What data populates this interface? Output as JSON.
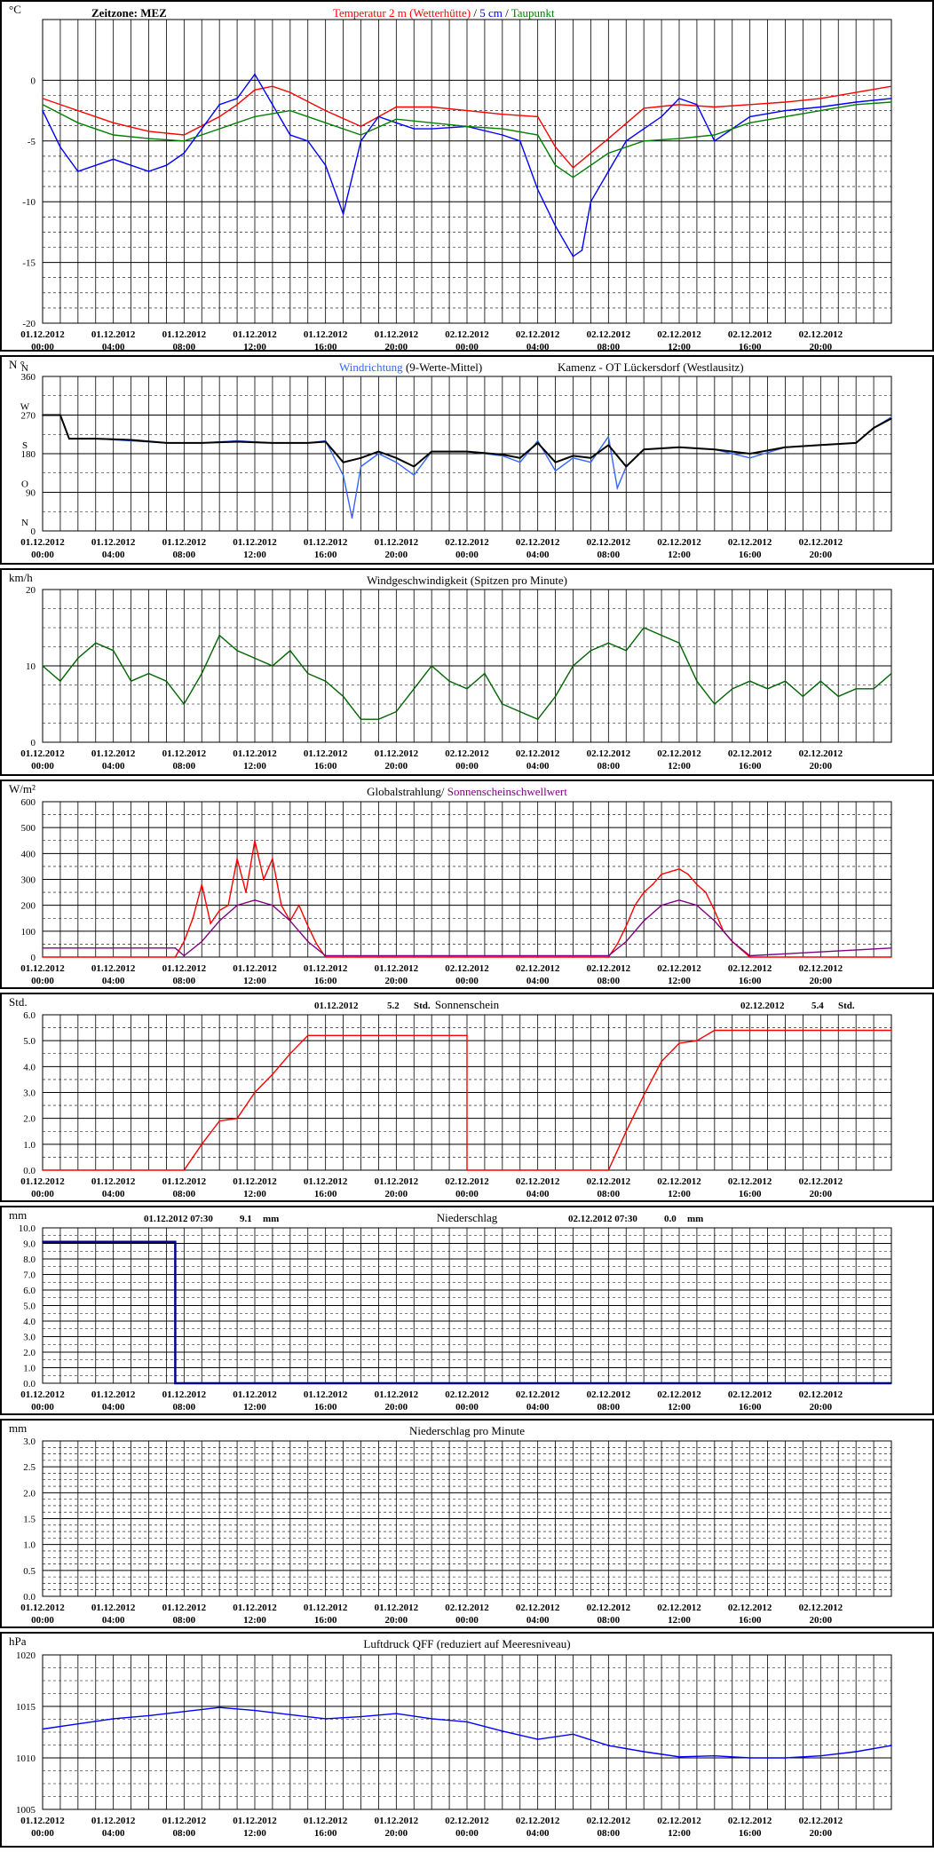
{
  "colors": {
    "background": "#ffffff",
    "panel_border": "#000000",
    "grid": "#000000",
    "temp_2m": "#ff0000",
    "temp_5cm": "#0000ff",
    "dewpoint": "#008000",
    "wind_dir_raw": "#3366ff",
    "wind_dir_avg": "#000000",
    "wind_speed": "#006400",
    "sun_threshold": "#800080",
    "precip_line": "#00008b"
  },
  "time_axis": {
    "labels": [
      {
        "date": "01.12.2012",
        "time": "00:00"
      },
      {
        "date": "01.12.2012",
        "time": "04:00"
      },
      {
        "date": "01.12.2012",
        "time": "08:00"
      },
      {
        "date": "01.12.2012",
        "time": "12:00"
      },
      {
        "date": "01.12.2012",
        "time": "16:00"
      },
      {
        "date": "01.12.2012",
        "time": "20:00"
      },
      {
        "date": "02.12.2012",
        "time": "00:00"
      },
      {
        "date": "02.12.2012",
        "time": "04:00"
      },
      {
        "date": "02.12.2012",
        "time": "08:00"
      },
      {
        "date": "02.12.2012",
        "time": "12:00"
      },
      {
        "date": "02.12.2012",
        "time": "16:00"
      },
      {
        "date": "02.12.2012",
        "time": "20:00"
      }
    ],
    "hours_shown": 48
  },
  "chart_data": [
    {
      "id": "temperature",
      "type": "line",
      "unit_label": "°C",
      "titles": [
        {
          "text": "Zeitzone: MEZ",
          "color": "#000000"
        },
        {
          "text": "Temperatur 2 m (Wetterhütte)",
          "color": "#ff0000"
        },
        {
          "text": "/",
          "color": "#000000"
        },
        {
          "text": "5 cm",
          "color": "#0000ff"
        },
        {
          "text": "/",
          "color": "#000000"
        },
        {
          "text": "Taupunkt",
          "color": "#008000"
        }
      ],
      "ylim": [
        -20,
        5
      ],
      "yticks": [
        -20,
        -15,
        -10,
        -5,
        0
      ],
      "ytick_labels": [
        "-20",
        "-15",
        "-10",
        "-5",
        "0"
      ],
      "series": [
        {
          "name": "Temperatur 2 m (Wetterhütte)",
          "color": "#ff0000",
          "x": [
            0,
            2,
            4,
            6,
            8,
            10,
            11,
            12,
            13,
            14,
            16,
            18,
            20,
            22,
            24,
            26,
            28,
            29,
            30,
            32,
            34,
            36,
            38,
            40,
            42,
            44,
            46,
            48
          ],
          "y": [
            -1.5,
            -2.5,
            -3.5,
            -4.2,
            -4.5,
            -3.0,
            -2.0,
            -0.8,
            -0.5,
            -1.0,
            -2.5,
            -3.8,
            -2.2,
            -2.2,
            -2.5,
            -2.8,
            -3.0,
            -5.5,
            -7.2,
            -4.8,
            -2.3,
            -2.0,
            -2.2,
            -2.0,
            -1.8,
            -1.5,
            -1.0,
            -0.5
          ]
        },
        {
          "name": "5 cm",
          "color": "#0000ff",
          "x": [
            0,
            1,
            2,
            3,
            4,
            5,
            6,
            7,
            8,
            9,
            10,
            11,
            12,
            13,
            14,
            15,
            16,
            17,
            18,
            19,
            20,
            21,
            22,
            24,
            26,
            27,
            28,
            29,
            30,
            30.5,
            31,
            32,
            33,
            34,
            35,
            36,
            37,
            38,
            40,
            42,
            44,
            46,
            48
          ],
          "y": [
            -2.5,
            -5.5,
            -7.5,
            -7.0,
            -6.5,
            -7.0,
            -7.5,
            -7.0,
            -6.0,
            -4.0,
            -2.0,
            -1.5,
            0.5,
            -2.0,
            -4.5,
            -5.0,
            -7.0,
            -11.0,
            -5.0,
            -3.0,
            -3.5,
            -4.0,
            -4.0,
            -3.8,
            -4.5,
            -5.0,
            -9.0,
            -12.0,
            -14.5,
            -14.0,
            -10.0,
            -7.5,
            -5.0,
            -4.0,
            -3.0,
            -1.5,
            -2.0,
            -5.0,
            -3.0,
            -2.5,
            -2.2,
            -1.8,
            -1.5
          ]
        },
        {
          "name": "Taupunkt",
          "color": "#008000",
          "x": [
            0,
            2,
            4,
            6,
            8,
            10,
            12,
            14,
            16,
            18,
            20,
            22,
            24,
            26,
            28,
            29,
            30,
            32,
            34,
            36,
            38,
            40,
            42,
            44,
            46,
            48
          ],
          "y": [
            -2.0,
            -3.5,
            -4.5,
            -4.8,
            -5.0,
            -4.0,
            -3.0,
            -2.5,
            -3.5,
            -4.5,
            -3.2,
            -3.5,
            -3.8,
            -4.0,
            -4.5,
            -7.0,
            -8.0,
            -6.0,
            -5.0,
            -4.8,
            -4.5,
            -3.5,
            -3.0,
            -2.5,
            -2.0,
            -1.8
          ]
        }
      ]
    },
    {
      "id": "wind_direction",
      "type": "line",
      "unit_label": "N °",
      "titles": [
        {
          "text": "Windrichtung",
          "color": "#3366ff"
        },
        {
          "text": "(9-Werte-Mittel)",
          "color": "#000000"
        },
        {
          "text": "Kamenz - OT Lückersdorf (Westlausitz)",
          "color": "#000000"
        }
      ],
      "ylim": [
        0,
        360
      ],
      "yticks": [
        0,
        90,
        180,
        270,
        360
      ],
      "ytick_labels": [
        "0",
        "90",
        "180",
        "270",
        "360"
      ],
      "compass_labels": [
        {
          "value": 360,
          "text": "N"
        },
        {
          "value": 270,
          "text": "W"
        },
        {
          "value": 180,
          "text": "S"
        },
        {
          "value": 90,
          "text": "O"
        },
        {
          "value": 0,
          "text": "N"
        }
      ],
      "series": [
        {
          "name": "Windrichtung",
          "color": "#3366ff",
          "x": [
            0,
            1,
            1.5,
            3,
            5,
            7,
            9,
            11,
            13,
            15,
            16,
            17,
            17.5,
            18,
            19,
            20,
            21,
            22,
            24,
            26,
            27,
            28,
            29,
            30,
            31,
            32,
            32.5,
            33,
            34,
            36,
            38,
            40,
            42,
            44,
            46,
            47,
            48
          ],
          "y": [
            270,
            270,
            215,
            215,
            210,
            205,
            205,
            210,
            205,
            205,
            210,
            130,
            30,
            150,
            180,
            160,
            130,
            185,
            185,
            175,
            160,
            210,
            140,
            170,
            160,
            220,
            100,
            150,
            190,
            195,
            190,
            170,
            195,
            200,
            205,
            240,
            265
          ]
        },
        {
          "name": "9-Werte-Mittel",
          "color": "#000000",
          "x": [
            0,
            1,
            1.5,
            3,
            5,
            7,
            9,
            11,
            13,
            15,
            16,
            17,
            18,
            19,
            20,
            21,
            22,
            24,
            26,
            27,
            28,
            29,
            30,
            31,
            32,
            33,
            34,
            36,
            38,
            40,
            42,
            44,
            46,
            47,
            48
          ],
          "y": [
            270,
            270,
            215,
            215,
            212,
            205,
            205,
            208,
            205,
            205,
            208,
            160,
            170,
            185,
            170,
            150,
            185,
            185,
            178,
            170,
            205,
            160,
            175,
            170,
            200,
            150,
            190,
            195,
            190,
            180,
            195,
            200,
            205,
            240,
            262
          ]
        }
      ]
    },
    {
      "id": "wind_speed",
      "type": "line",
      "unit_label": "km/h",
      "titles": [
        {
          "text": "Windgeschwindigkeit (Spitzen pro Minute)",
          "color": "#000000"
        }
      ],
      "ylim": [
        0,
        20
      ],
      "yticks": [
        0,
        10,
        20
      ],
      "ytick_labels": [
        "0",
        "10",
        "20"
      ],
      "series": [
        {
          "name": "Windgeschwindigkeit",
          "color": "#006400",
          "x": [
            0,
            1,
            2,
            3,
            4,
            5,
            6,
            7,
            8,
            9,
            10,
            11,
            12,
            13,
            14,
            15,
            16,
            17,
            18,
            19,
            20,
            21,
            22,
            23,
            24,
            25,
            26,
            27,
            28,
            29,
            30,
            31,
            32,
            33,
            34,
            35,
            36,
            37,
            38,
            39,
            40,
            41,
            42,
            43,
            44,
            45,
            46,
            47,
            48
          ],
          "y": [
            10,
            8,
            11,
            13,
            12,
            8,
            9,
            8,
            5,
            9,
            14,
            12,
            11,
            10,
            12,
            9,
            8,
            6,
            3,
            3,
            4,
            7,
            10,
            8,
            7,
            9,
            5,
            4,
            3,
            6,
            10,
            12,
            13,
            12,
            15,
            14,
            13,
            8,
            5,
            7,
            8,
            7,
            8,
            6,
            8,
            6,
            7,
            7,
            9
          ]
        }
      ]
    },
    {
      "id": "radiation",
      "type": "line",
      "unit_label": "W/m²",
      "titles": [
        {
          "text": "Globalstrahlung/",
          "color": "#000000"
        },
        {
          "text": "Sonnenscheinschwellwert",
          "color": "#800080"
        }
      ],
      "ylim": [
        0,
        600
      ],
      "yticks": [
        0,
        100,
        200,
        300,
        400,
        500,
        600
      ],
      "ytick_labels": [
        "0",
        "100",
        "200",
        "300",
        "400",
        "500",
        "600"
      ],
      "series": [
        {
          "name": "Globalstrahlung",
          "color": "#ff0000",
          "x": [
            0,
            7.5,
            8,
            8.5,
            9,
            9.5,
            10,
            10.5,
            11,
            11.5,
            12,
            12.5,
            13,
            13.5,
            14,
            14.5,
            15,
            15.5,
            16,
            32,
            32.5,
            33,
            33.5,
            34,
            34.5,
            35,
            35.5,
            36,
            36.5,
            37,
            37.5,
            38,
            38.5,
            39,
            39.5,
            40,
            48
          ],
          "y": [
            0,
            0,
            60,
            150,
            280,
            130,
            180,
            200,
            380,
            250,
            450,
            300,
            380,
            200,
            140,
            200,
            120,
            50,
            0,
            0,
            50,
            120,
            200,
            250,
            280,
            320,
            330,
            340,
            320,
            280,
            250,
            180,
            100,
            60,
            30,
            0,
            0
          ]
        },
        {
          "name": "Sonnenscheinschwellwert",
          "color": "#800080",
          "x": [
            0,
            7.5,
            8,
            9,
            10,
            11,
            12,
            13,
            14,
            15,
            16,
            32,
            33,
            34,
            35,
            36,
            37,
            38,
            39,
            40,
            48
          ],
          "y": [
            35,
            35,
            5,
            60,
            140,
            200,
            220,
            200,
            140,
            60,
            5,
            5,
            60,
            140,
            200,
            220,
            200,
            140,
            60,
            5,
            35
          ]
        }
      ]
    },
    {
      "id": "sunshine",
      "type": "line",
      "unit_label": "Std.",
      "titles": [
        {
          "text": "Sonnenschein",
          "color": "#000000"
        }
      ],
      "annotations": [
        {
          "date": "01.12.2012",
          "value": "5.2",
          "unit": "Std."
        },
        {
          "date": "02.12.2012",
          "value": "5.4",
          "unit": "Std."
        }
      ],
      "ylim": [
        0,
        6
      ],
      "yticks": [
        0,
        1,
        2,
        3,
        4,
        5,
        6
      ],
      "ytick_labels": [
        "0.0",
        "1.0",
        "2.0",
        "3.0",
        "4.0",
        "5.0",
        "6.0"
      ],
      "series": [
        {
          "name": "Sonnenschein",
          "color": "#ff0000",
          "x": [
            0,
            8,
            9,
            10,
            11,
            12,
            13,
            14,
            15,
            24,
            24,
            32,
            33,
            34,
            35,
            36,
            37,
            38,
            39,
            48
          ],
          "y": [
            0,
            0,
            1.0,
            1.9,
            2.0,
            3.0,
            3.7,
            4.5,
            5.2,
            5.2,
            0,
            0,
            1.5,
            2.9,
            4.2,
            4.9,
            5.0,
            5.4,
            5.4,
            5.4
          ]
        }
      ]
    },
    {
      "id": "precipitation",
      "type": "line",
      "unit_label": "mm",
      "titles": [
        {
          "text": "Niederschlag",
          "color": "#000000"
        }
      ],
      "annotations": [
        {
          "date": "01.12.2012 07:30",
          "value": "9.1",
          "unit": "mm"
        },
        {
          "date": "02.12.2012 07:30",
          "value": "0.0",
          "unit": "mm"
        }
      ],
      "ylim": [
        0,
        10
      ],
      "yticks": [
        0,
        1,
        2,
        3,
        4,
        5,
        6,
        7,
        8,
        9,
        10
      ],
      "ytick_labels": [
        "0.0",
        "1.0",
        "2.0",
        "3.0",
        "4.0",
        "5.0",
        "6.0",
        "7.0",
        "8.0",
        "9.0",
        "10.0"
      ],
      "series": [
        {
          "name": "Niederschlag",
          "color": "#00008b",
          "x": [
            0,
            7.5,
            7.5,
            48
          ],
          "y": [
            9.1,
            9.1,
            0,
            0
          ]
        }
      ]
    },
    {
      "id": "precip_minute",
      "type": "line",
      "unit_label": "mm",
      "titles": [
        {
          "text": "Niederschlag pro Minute",
          "color": "#000000"
        }
      ],
      "ylim": [
        0,
        3
      ],
      "yticks": [
        0,
        0.5,
        1,
        1.5,
        2,
        2.5,
        3
      ],
      "ytick_labels": [
        "0.0",
        "0.5",
        "1.0",
        "1.5",
        "2.0",
        "2.5",
        "3.0"
      ],
      "series": []
    },
    {
      "id": "pressure",
      "type": "line",
      "unit_label": "hPa",
      "titles": [
        {
          "text": "Luftdruck QFF (reduziert auf Meeresniveau)",
          "color": "#000000"
        }
      ],
      "ylim": [
        1005,
        1020
      ],
      "yticks": [
        1005,
        1010,
        1015,
        1020
      ],
      "ytick_labels": [
        "1005",
        "1010",
        "1015",
        "1020"
      ],
      "series": [
        {
          "name": "Luftdruck",
          "color": "#0000ff",
          "x": [
            0,
            2,
            4,
            6,
            8,
            10,
            12,
            14,
            16,
            18,
            20,
            22,
            24,
            26,
            28,
            30,
            32,
            34,
            36,
            38,
            40,
            42,
            44,
            46,
            48
          ],
          "y": [
            1012.8,
            1013.3,
            1013.8,
            1014.1,
            1014.5,
            1014.9,
            1014.6,
            1014.2,
            1013.8,
            1014.0,
            1014.3,
            1013.8,
            1013.5,
            1012.6,
            1011.8,
            1012.3,
            1011.2,
            1010.6,
            1010.1,
            1010.2,
            1010.0,
            1010.0,
            1010.2,
            1010.6,
            1011.2
          ]
        }
      ]
    }
  ]
}
